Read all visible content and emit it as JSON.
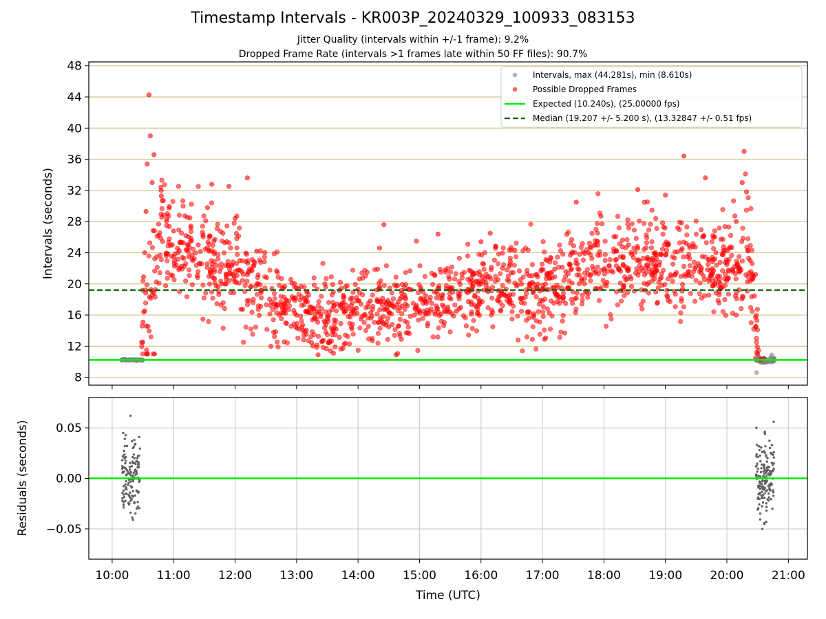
{
  "header": {
    "title": "Timestamp Intervals - KR003P_20240329_100933_083153",
    "subtitle_1": "Jitter Quality (intervals within +/-1 frame): 9.2%",
    "subtitle_2": "Dropped Frame Rate (intervals >1 frames late within 50 FF files): 90.7%"
  },
  "colors": {
    "intervals": "#808080",
    "dropped": "#ff0000",
    "expected": "#00ee00",
    "median": "#006400",
    "grid_top": "#d4c48a",
    "grid_bottom": "#c8c8c8",
    "residuals": "#606060"
  },
  "chart_data": [
    {
      "type": "scatter",
      "xlabel": "",
      "ylabel": "Intervals (seconds)",
      "ylim": [
        7,
        48.5
      ],
      "xlim_hours": [
        9.62,
        21.31
      ],
      "yticks": [
        8,
        12,
        16,
        20,
        24,
        28,
        32,
        36,
        40,
        44,
        48
      ],
      "grid": "horizontal",
      "legend_position": "top-right",
      "legend": [
        "Intervals, max (44.281s), min (8.610s)",
        "Possible Dropped Frames",
        "Expected (10.240s), (25.00000 fps)",
        "Median (19.207 +/- 5.200 s), (13.32847 +/- 0.51 fps)"
      ],
      "expected_interval": 10.24,
      "median_interval": 19.207,
      "max_interval": 44.281,
      "min_interval": 8.61,
      "series": [
        {
          "name": "Intervals, max (44.281s), min (8.610s)",
          "points": [
            [
              10.17,
              10.24
            ],
            [
              10.2,
              10.25
            ],
            [
              10.23,
              10.22
            ],
            [
              10.26,
              10.26
            ],
            [
              10.29,
              10.23
            ],
            [
              10.32,
              10.25
            ],
            [
              10.35,
              10.24
            ],
            [
              10.38,
              10.22
            ],
            [
              10.41,
              10.26
            ],
            [
              10.44,
              10.24
            ],
            [
              10.47,
              10.23
            ],
            [
              20.48,
              8.61
            ],
            [
              20.52,
              10.2
            ],
            [
              20.55,
              10.3
            ],
            [
              20.58,
              9.95
            ],
            [
              20.61,
              10.1
            ],
            [
              20.64,
              10.3
            ],
            [
              20.67,
              10.0
            ],
            [
              20.7,
              10.4
            ],
            [
              20.73,
              10.9
            ],
            [
              20.76,
              10.25
            ]
          ]
        },
        {
          "name": "Possible Dropped Frames",
          "points": [
            [
              10.48,
              12.5
            ],
            [
              10.5,
              15.1
            ],
            [
              10.51,
              20.9
            ],
            [
              10.53,
              24.0
            ],
            [
              10.55,
              29.3
            ],
            [
              10.57,
              35.4
            ],
            [
              10.6,
              44.28
            ],
            [
              10.62,
              39.0
            ],
            [
              10.65,
              33.0
            ],
            [
              10.68,
              36.6
            ],
            [
              10.8,
              31.3
            ],
            [
              10.9,
              29.0
            ],
            [
              11.0,
              26.8
            ],
            [
              11.1,
              25.3
            ],
            [
              11.25,
              23.5
            ],
            [
              11.4,
              25.0
            ],
            [
              11.55,
              29.8
            ],
            [
              11.62,
              32.8
            ],
            [
              11.8,
              26.5
            ],
            [
              11.9,
              32.5
            ],
            [
              12.0,
              28.4
            ],
            [
              12.2,
              33.6
            ],
            [
              12.35,
              24.2
            ],
            [
              12.6,
              19.4
            ],
            [
              12.8,
              17.4
            ],
            [
              13.0,
              16.0
            ],
            [
              13.1,
              14.0
            ],
            [
              13.2,
              16.3
            ],
            [
              13.35,
              10.9
            ],
            [
              13.5,
              15.5
            ],
            [
              13.6,
              11.1
            ],
            [
              13.75,
              16.8
            ],
            [
              13.9,
              18.2
            ],
            [
              14.0,
              19.3
            ],
            [
              14.1,
              16.0
            ],
            [
              14.2,
              17.8
            ],
            [
              14.35,
              24.6
            ],
            [
              14.42,
              27.6
            ],
            [
              14.5,
              14.5
            ],
            [
              14.62,
              10.9
            ],
            [
              14.8,
              17.2
            ],
            [
              14.95,
              25.5
            ],
            [
              15.1,
              18.5
            ],
            [
              15.3,
              26.4
            ],
            [
              15.5,
              19.3
            ],
            [
              15.6,
              16.5
            ],
            [
              15.8,
              19.2
            ],
            [
              16.0,
              25.4
            ],
            [
              16.15,
              26.5
            ],
            [
              16.35,
              22.0
            ],
            [
              16.55,
              24.3
            ],
            [
              16.8,
              20.1
            ],
            [
              17.0,
              17.8
            ],
            [
              17.2,
              21.9
            ],
            [
              17.45,
              22.5
            ],
            [
              17.55,
              30.5
            ],
            [
              17.75,
              24.0
            ],
            [
              17.95,
              28.7
            ],
            [
              18.05,
              20.2
            ],
            [
              18.2,
              24.2
            ],
            [
              18.4,
              25.0
            ],
            [
              18.55,
              32.1
            ],
            [
              18.7,
              23.2
            ],
            [
              18.9,
              22.4
            ],
            [
              19.0,
              31.4
            ],
            [
              19.2,
              27.2
            ],
            [
              19.3,
              36.4
            ],
            [
              19.45,
              24.8
            ],
            [
              19.6,
              23.5
            ],
            [
              19.65,
              33.6
            ],
            [
              19.85,
              21.0
            ],
            [
              20.0,
              22.5
            ],
            [
              20.15,
              28.0
            ],
            [
              20.25,
              33.0
            ],
            [
              20.28,
              37.0
            ],
            [
              20.32,
              31.8
            ],
            [
              20.38,
              23.0
            ],
            [
              20.42,
              20.6
            ],
            [
              20.47,
              14.5
            ],
            [
              20.5,
              11.0
            ],
            [
              20.55,
              10.3
            ],
            [
              20.6,
              10.4
            ]
          ]
        }
      ]
    },
    {
      "type": "scatter",
      "xlabel": "Time (UTC)",
      "ylabel": "Residuals (seconds)",
      "ylim": [
        -0.08,
        0.08
      ],
      "yticks": [
        0.05,
        0.0,
        -0.05
      ],
      "ytick_labels": [
        "0.05",
        "0.00",
        "−0.05"
      ],
      "x_tick_labels": [
        "10:00",
        "11:00",
        "12:00",
        "13:00",
        "14:00",
        "15:00",
        "16:00",
        "17:00",
        "18:00",
        "19:00",
        "20:00",
        "21:00"
      ],
      "grid": "both",
      "series": [
        {
          "points": [
            [
              10.18,
              0.045
            ],
            [
              10.2,
              0.02
            ],
            [
              10.22,
              -0.01
            ],
            [
              10.24,
              0.032
            ],
            [
              10.26,
              0.005
            ],
            [
              10.28,
              -0.025
            ],
            [
              10.3,
              0.062
            ],
            [
              10.32,
              0.012
            ],
            [
              10.34,
              -0.018
            ],
            [
              10.36,
              0.038
            ],
            [
              10.38,
              0.0
            ],
            [
              10.4,
              -0.03
            ],
            [
              10.42,
              0.022
            ],
            [
              10.44,
              0.041
            ],
            [
              10.3,
              -0.034
            ],
            [
              20.48,
              0.05
            ],
            [
              20.5,
              -0.031
            ],
            [
              20.53,
              0.028
            ],
            [
              20.56,
              0.01
            ],
            [
              20.59,
              -0.008
            ],
            [
              20.62,
              0.044
            ],
            [
              20.64,
              -0.043
            ],
            [
              20.66,
              0.02
            ],
            [
              20.68,
              -0.015
            ],
            [
              20.7,
              0.03
            ],
            [
              20.72,
              0.005
            ],
            [
              20.74,
              -0.03
            ],
            [
              20.76,
              0.056
            ],
            [
              20.66,
              0.0
            ],
            [
              20.6,
              0.012
            ]
          ]
        }
      ]
    }
  ]
}
